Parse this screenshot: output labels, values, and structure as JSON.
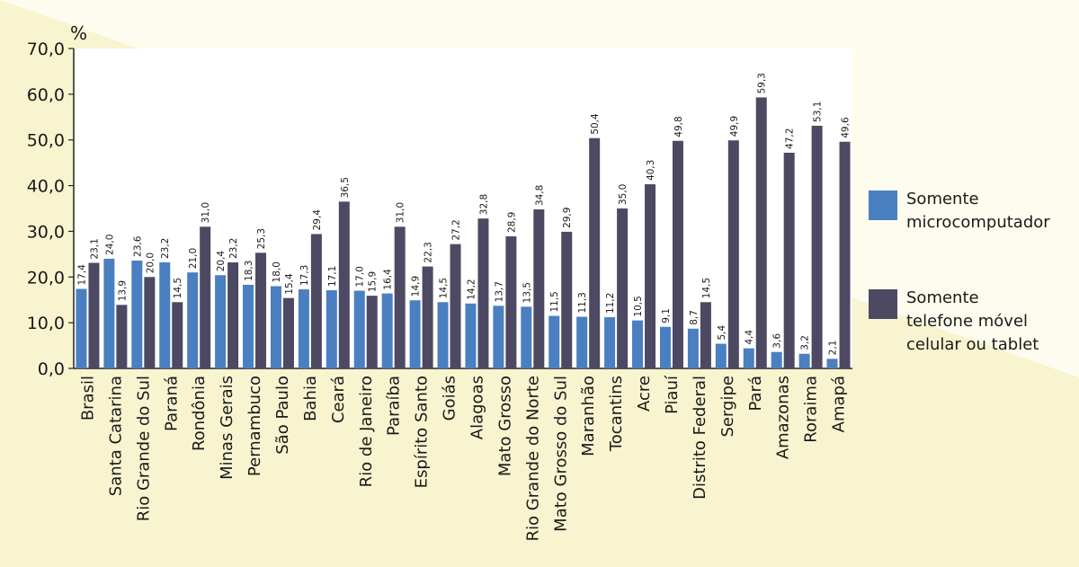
{
  "chart_data": {
    "type": "bar",
    "unit_label": "%",
    "ylim": [
      0,
      70
    ],
    "yticks": [
      "0,0",
      "10,0",
      "20,0",
      "30,0",
      "40,0",
      "50,0",
      "60,0",
      "70,0"
    ],
    "grid": false,
    "legend_position": "right",
    "categories": [
      "Brasil",
      "Santa Catarina",
      "Rio Grande do Sul",
      "Paraná",
      "Rondônia",
      "Minas Gerais",
      "Pernambuco",
      "São Paulo",
      "Bahia",
      "Ceará",
      "Rio de Janeiro",
      "Paraíba",
      "Espírito Santo",
      "Goiás",
      "Alagoas",
      "Mato Grosso",
      "Rio Grande do Norte",
      "Mato Grosso do Sul",
      "Maranhão",
      "Tocantins",
      "Acre",
      "Piauí",
      "Distrito Federal",
      "Sergipe",
      "Pará",
      "Amazonas",
      "Roraima",
      "Amapá"
    ],
    "series": [
      {
        "name": "Somente microcomputador",
        "legend_lines": [
          "Somente",
          "microcomputador"
        ],
        "color": "#4a7fc1",
        "values": [
          17.4,
          24.0,
          23.6,
          23.2,
          21.0,
          20.4,
          18.3,
          18.0,
          17.3,
          17.1,
          17.0,
          16.4,
          14.9,
          14.5,
          14.2,
          13.7,
          13.5,
          11.5,
          11.3,
          11.2,
          10.5,
          9.1,
          8.7,
          5.4,
          4.4,
          3.6,
          3.2,
          2.1
        ],
        "labels": [
          "17,4",
          "24,0",
          "23,6",
          "23,2",
          "21,0",
          "20,4",
          "18,3",
          "18,0",
          "17,3",
          "17,1",
          "17,0",
          "16,4",
          "14,9",
          "14,5",
          "14,2",
          "13,7",
          "13,5",
          "11,5",
          "11,3",
          "11,2",
          "10,5",
          "9,1",
          "8,7",
          "5,4",
          "4,4",
          "3,6",
          "3,2",
          "2,1"
        ]
      },
      {
        "name": "Somente telefone móvel celular ou tablet",
        "legend_lines": [
          "Somente",
          "telefone móvel",
          "celular ou tablet"
        ],
        "color": "#4d4963",
        "values": [
          23.1,
          13.9,
          20.0,
          14.5,
          31.0,
          23.2,
          25.3,
          15.4,
          29.4,
          36.5,
          15.9,
          31.0,
          22.3,
          27.2,
          32.8,
          28.9,
          34.8,
          29.9,
          50.4,
          35.0,
          40.3,
          49.8,
          14.5,
          49.9,
          59.3,
          47.2,
          53.1,
          49.6
        ],
        "labels": [
          "23,1",
          "13,9",
          "20,0",
          "14,5",
          "31,0",
          "23,2",
          "25,3",
          "15,4",
          "29,4",
          "36,5",
          "15,9",
          "31,0",
          "22,3",
          "27,2",
          "32,8",
          "28,9",
          "34,8",
          "29,9",
          "50,4",
          "35,0",
          "40,3",
          "49,8",
          "14,5",
          "49,9",
          "59,3",
          "47,2",
          "53,1",
          "49,6"
        ]
      }
    ]
  }
}
